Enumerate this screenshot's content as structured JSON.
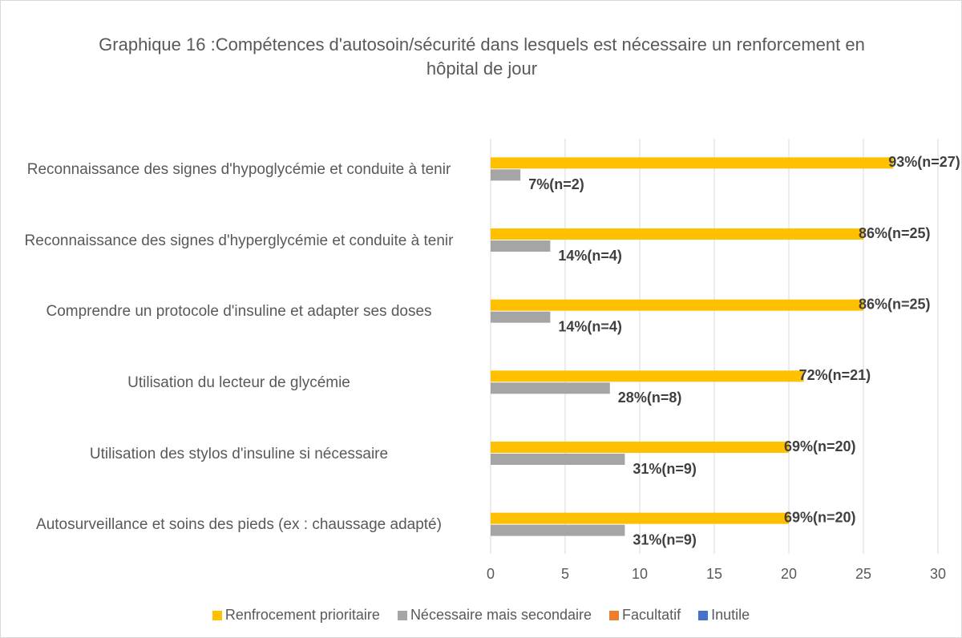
{
  "chart_data": {
    "type": "hbar",
    "title": "Graphique 16 :Compétences d'autosoin/sécurité dans lesquels est nécessaire un renforcement en hôpital de jour",
    "categories": [
      "Reconnaissance des signes d'hypoglycémie et conduite à tenir",
      "Reconnaissance des signes d'hyperglycémie et conduite à tenir",
      "Comprendre un protocole d'insuline et adapter ses doses",
      "Utilisation du lecteur de glycémie",
      "Utilisation des stylos d'insuline si nécessaire",
      "Autosurveillance et soins des pieds (ex : chaussage adapté)"
    ],
    "series": [
      {
        "name": "Renfrocement prioritaire",
        "color": "#ffc000",
        "values": [
          27,
          25,
          25,
          21,
          20,
          20
        ],
        "value_labels": [
          "93%(n=27)",
          "86%(n=25)",
          "86%(n=25)",
          "72%(n=21)",
          "69%(n=20)",
          "69%(n=20)"
        ]
      },
      {
        "name": "Nécessaire mais secondaire",
        "color": "#a5a5a5",
        "values": [
          2,
          4,
          4,
          8,
          9,
          9
        ],
        "value_labels": [
          "7%(n=2)",
          "14%(n=4)",
          "14%(n=4)",
          "28%(n=8)",
          "31%(n=9)",
          "31%(n=9)"
        ]
      },
      {
        "name": "Facultatif",
        "color": "#ed7d31",
        "values": [
          0,
          0,
          0,
          0,
          0,
          0
        ]
      },
      {
        "name": "Inutile",
        "color": "#4472c4",
        "values": [
          0,
          0,
          0,
          0,
          0,
          0
        ]
      }
    ],
    "xlim": [
      0,
      30
    ],
    "xticks": [
      0,
      5,
      10,
      15,
      20,
      25,
      30
    ],
    "grid": true,
    "legend": "bottom"
  }
}
